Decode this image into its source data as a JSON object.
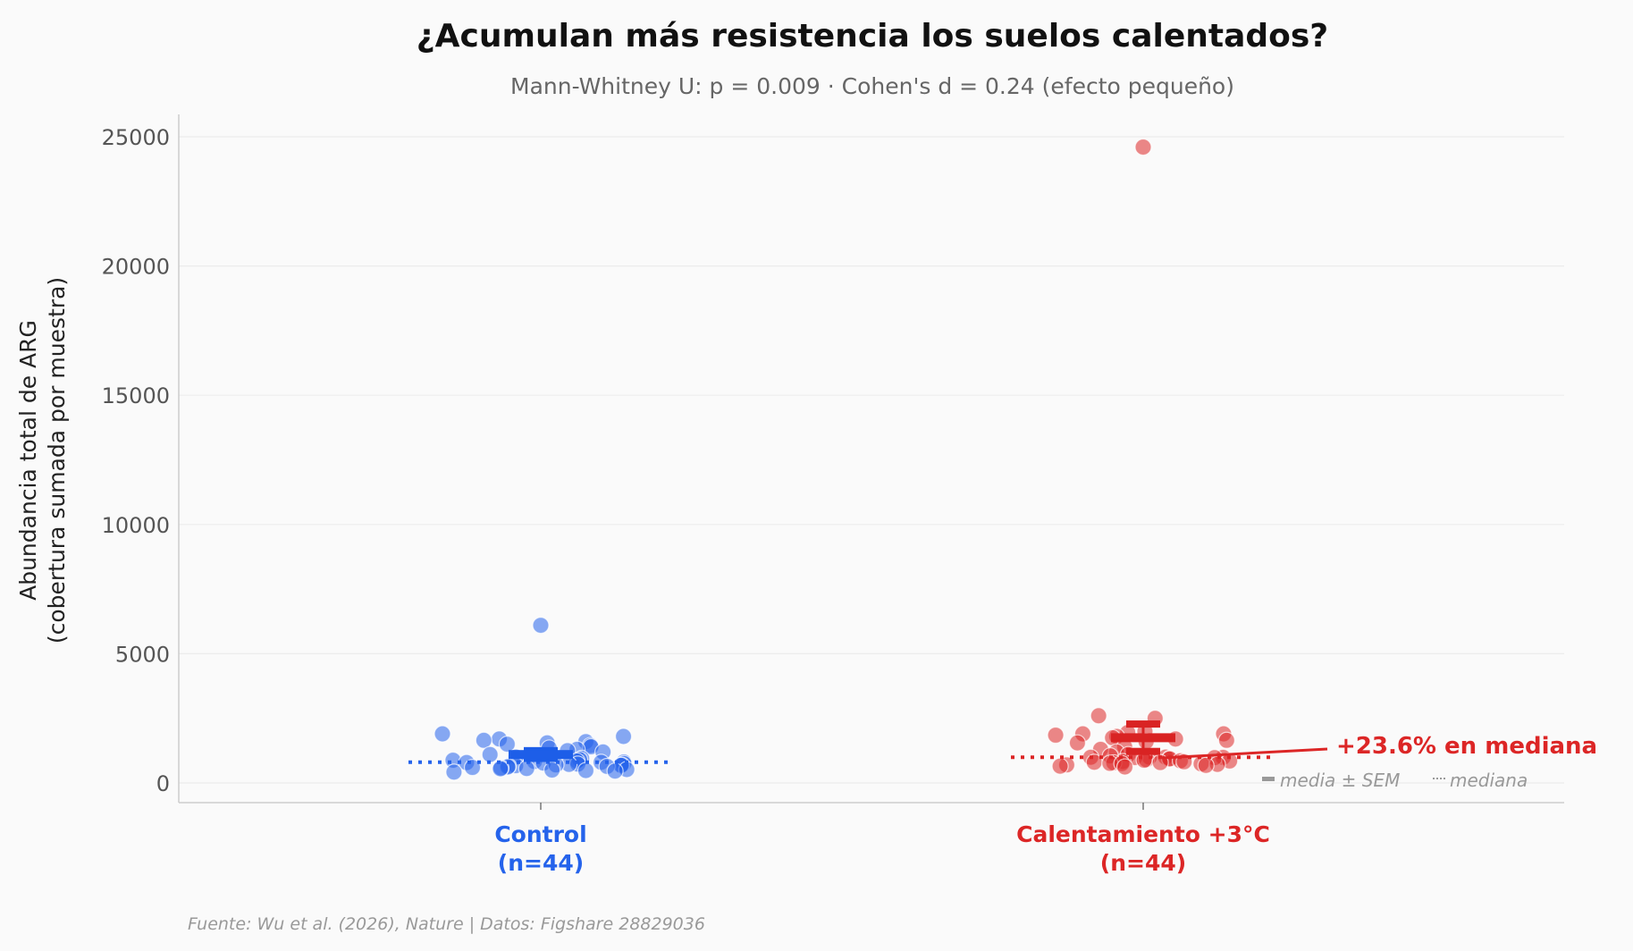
{
  "chart_data": {
    "type": "scatter",
    "title": "¿Acumulan más resistencia los suelos calentados?",
    "subtitle": "Mann-Whitney U: p = 0.009 · Cohen's d = 0.24 (efecto pequeño)",
    "ylabel_line1": "Abundancia total de ARG",
    "ylabel_line2": "(cobertura sumada por muestra)",
    "ylim": [
      -750,
      25800
    ],
    "yticks": [
      0,
      5000,
      10000,
      15000,
      20000,
      25000
    ],
    "grid": "horizontal",
    "groups": [
      {
        "label_line1": "Control",
        "label_line2": "(n=44)",
        "color": "#2563eb",
        "median": 805,
        "mean": 1100,
        "sem": 150,
        "values": [
          6100,
          1900,
          1800,
          1700,
          1650,
          1600,
          1550,
          1500,
          1450,
          1400,
          1350,
          1300,
          1250,
          1200,
          1100,
          1000,
          950,
          900,
          880,
          850,
          830,
          810,
          800,
          790,
          770,
          750,
          730,
          720,
          700,
          690,
          680,
          670,
          650,
          640,
          620,
          600,
          580,
          560,
          550,
          520,
          500,
          480,
          460,
          420
        ]
      },
      {
        "label_line1": "Calentamiento +3°C",
        "label_line2": "(n=44)",
        "color": "#dc2626",
        "median": 995,
        "mean": 1750,
        "sem": 530,
        "values": [
          24600,
          2600,
          2500,
          2000,
          1950,
          1900,
          1900,
          1850,
          1800,
          1750,
          1700,
          1650,
          1600,
          1550,
          1400,
          1300,
          1200,
          1100,
          1050,
          1000,
          1000,
          995,
          990,
          985,
          980,
          950,
          930,
          900,
          880,
          860,
          850,
          830,
          820,
          800,
          790,
          780,
          760,
          750,
          740,
          720,
          700,
          680,
          650,
          620
        ]
      }
    ],
    "annotation": "+23.6% en mediana",
    "legend": {
      "placement": "bottom-right",
      "mean_label": "media ± SEM",
      "median_label": "mediana"
    },
    "source": "Fuente: Wu et al. (2026), Nature | Datos: Figshare 28829036"
  }
}
